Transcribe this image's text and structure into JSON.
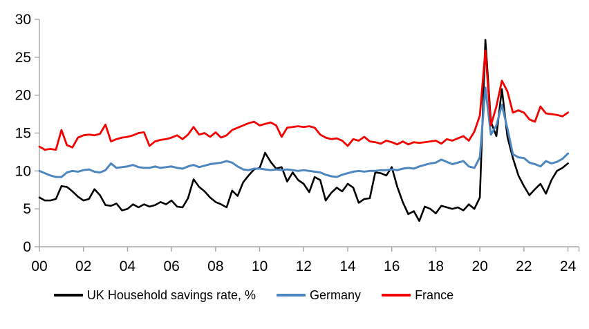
{
  "figure": {
    "background": "#ffffff"
  },
  "axes": {
    "axis_color": "#a6a6a6",
    "label_color": "#000000",
    "y_tick_labels": [
      "0",
      "5",
      "10",
      "15",
      "20",
      "25",
      "30"
    ],
    "y_tick_values": [
      0,
      5,
      10,
      15,
      20,
      25,
      30
    ],
    "x_tick_labels": [
      "00",
      "02",
      "04",
      "06",
      "08",
      "10",
      "12",
      "14",
      "16",
      "18",
      "20",
      "22",
      "24"
    ]
  },
  "chart_data": {
    "type": "line",
    "title": "",
    "xlabel": "",
    "ylabel": "",
    "frequency": "quarterly",
    "x_start": "2000 Q1",
    "x_end": "2024 Q1",
    "xlim_years": [
      2000,
      2024.5
    ],
    "ylim": [
      0,
      30
    ],
    "y_tick_interval": 5,
    "grid": false,
    "legend_position": "bottom",
    "series": [
      {
        "name": "UK Household savings rate, %",
        "color": "#000000",
        "stroke_width": 2.6,
        "values": [
          6.5,
          6.1,
          6.1,
          6.3,
          8.0,
          7.9,
          7.3,
          6.6,
          6.1,
          6.3,
          7.6,
          6.8,
          5.5,
          5.4,
          5.7,
          4.8,
          5.0,
          5.6,
          5.2,
          5.6,
          5.3,
          5.5,
          5.9,
          5.6,
          6.1,
          5.3,
          5.2,
          6.4,
          8.9,
          7.9,
          7.3,
          6.5,
          5.9,
          5.6,
          5.2,
          7.4,
          6.7,
          8.5,
          9.4,
          10.2,
          10.4,
          12.4,
          11.2,
          10.3,
          10.5,
          8.6,
          9.8,
          8.8,
          8.3,
          7.2,
          9.2,
          8.8,
          6.1,
          7.1,
          7.8,
          7.3,
          8.3,
          7.8,
          5.8,
          6.3,
          6.4,
          9.8,
          9.7,
          9.4,
          10.5,
          7.9,
          5.9,
          4.3,
          4.7,
          3.4,
          5.3,
          5.0,
          4.4,
          5.4,
          5.2,
          5.0,
          5.2,
          4.8,
          5.6,
          5.0,
          6.5,
          27.3,
          16.5,
          14.6,
          20.8,
          14.5,
          11.7,
          9.4,
          8.0,
          6.8,
          7.6,
          8.3,
          7.0,
          8.8,
          10.0,
          10.4,
          11.0
        ]
      },
      {
        "name": "Germany",
        "color": "#4e86c0",
        "stroke_width": 3,
        "values": [
          10.0,
          9.7,
          9.4,
          9.2,
          9.2,
          9.8,
          10.0,
          9.9,
          10.1,
          10.2,
          9.9,
          9.8,
          10.1,
          11.0,
          10.4,
          10.5,
          10.6,
          10.8,
          10.5,
          10.4,
          10.4,
          10.6,
          10.4,
          10.5,
          10.6,
          10.4,
          10.3,
          10.6,
          10.8,
          10.5,
          10.7,
          10.9,
          11.0,
          11.1,
          11.3,
          11.1,
          10.6,
          10.2,
          10.1,
          10.3,
          10.3,
          10.2,
          10.1,
          10.2,
          10.1,
          10.2,
          10.1,
          10.0,
          10.1,
          10.0,
          9.9,
          9.8,
          9.5,
          9.3,
          9.2,
          9.5,
          9.7,
          9.9,
          10.0,
          9.9,
          10.0,
          10.0,
          10.1,
          10.1,
          10.2,
          10.1,
          10.3,
          10.4,
          10.3,
          10.6,
          10.8,
          11.0,
          11.1,
          11.5,
          11.2,
          10.9,
          11.1,
          11.3,
          10.6,
          10.4,
          11.8,
          21.0,
          14.8,
          16.0,
          18.7,
          15.6,
          12.2,
          11.8,
          11.7,
          11.1,
          10.9,
          10.6,
          11.3,
          11.0,
          11.2,
          11.6,
          12.3
        ]
      },
      {
        "name": "France",
        "color": "#f40000",
        "stroke_width": 2.8,
        "values": [
          13.2,
          12.8,
          12.9,
          12.8,
          15.4,
          13.4,
          13.1,
          14.4,
          14.7,
          14.8,
          14.7,
          14.9,
          16.1,
          13.9,
          14.2,
          14.4,
          14.5,
          14.7,
          15.0,
          15.1,
          13.3,
          13.9,
          14.1,
          14.2,
          14.4,
          14.7,
          14.2,
          14.8,
          15.8,
          14.8,
          15.0,
          14.5,
          15.1,
          14.4,
          14.7,
          15.4,
          15.7,
          16.0,
          16.3,
          16.5,
          16.0,
          16.2,
          16.4,
          16.0,
          14.5,
          15.7,
          15.8,
          15.9,
          15.8,
          15.9,
          15.7,
          14.8,
          14.4,
          14.2,
          14.3,
          14.0,
          13.3,
          14.2,
          14.0,
          14.5,
          13.9,
          13.8,
          13.6,
          14.0,
          13.8,
          13.5,
          13.9,
          13.5,
          13.8,
          13.7,
          13.8,
          13.9,
          14.0,
          13.6,
          14.2,
          14.0,
          14.3,
          14.6,
          14.0,
          15.2,
          17.3,
          25.9,
          16.0,
          18.5,
          21.9,
          20.5,
          17.7,
          18.0,
          17.7,
          16.8,
          16.5,
          18.5,
          17.6,
          17.5,
          17.4,
          17.2,
          17.7
        ]
      }
    ]
  }
}
